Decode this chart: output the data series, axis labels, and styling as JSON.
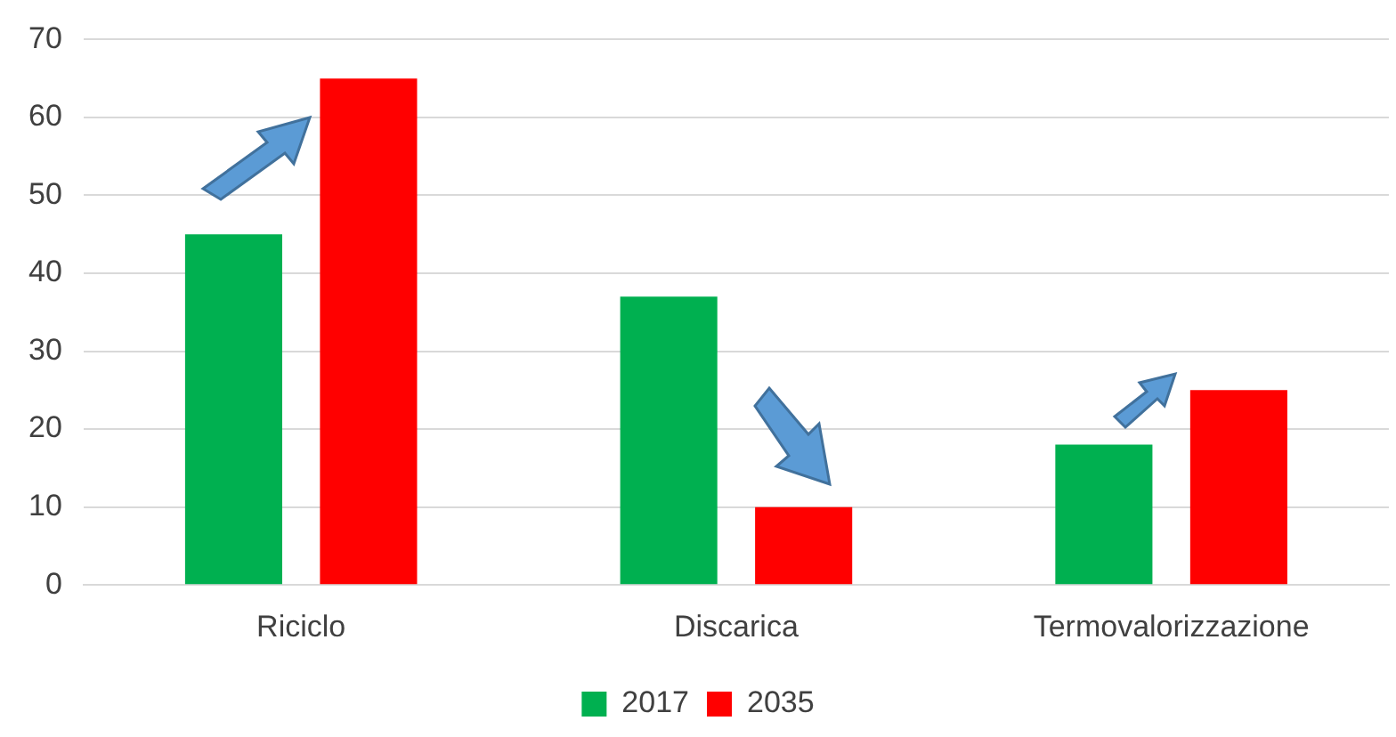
{
  "chart_data": {
    "type": "bar",
    "categories": [
      "Riciclo",
      "Discarica",
      "Termovalorizzazione"
    ],
    "series": [
      {
        "name": "2017",
        "color": "#00b050",
        "values": [
          45,
          37,
          18
        ]
      },
      {
        "name": "2035",
        "color": "#ff0000",
        "values": [
          65,
          10,
          25
        ]
      }
    ],
    "ylim": [
      0,
      70
    ],
    "yticks": [
      0,
      10,
      20,
      30,
      40,
      50,
      60,
      70
    ],
    "grid": "y",
    "legend": "bottom"
  }
}
